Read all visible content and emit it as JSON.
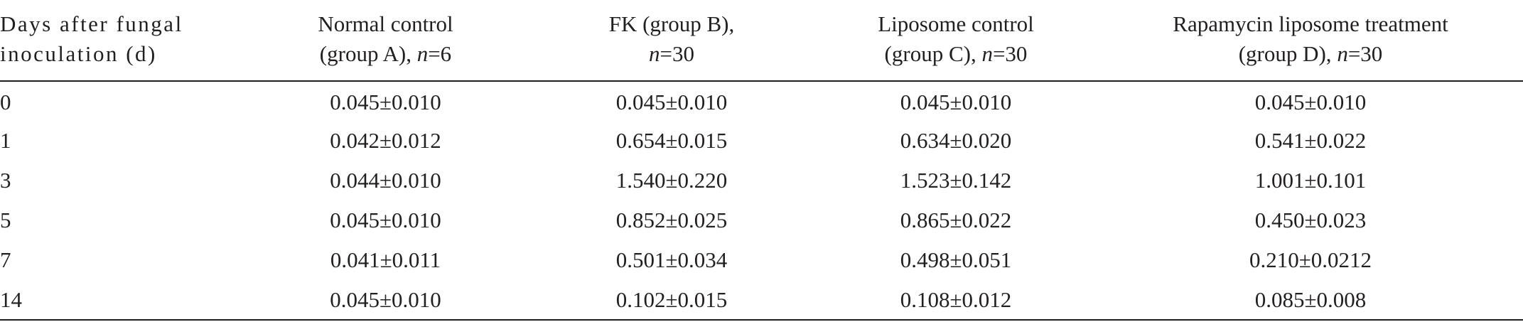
{
  "table": {
    "headers": [
      {
        "line1": "Days after fungal",
        "line2": "inoculation (d)"
      },
      {
        "line1": "Normal control",
        "line2_pre": "(group A), ",
        "n_label": "n",
        "line2_post": "=6"
      },
      {
        "line1": "FK (group B),",
        "line2_pre": "",
        "n_label": "n",
        "line2_post": "=30"
      },
      {
        "line1": "Liposome control",
        "line2_pre": "(group C), ",
        "n_label": "n",
        "line2_post": "=30"
      },
      {
        "line1": "Rapamycin liposome treatment",
        "line2_pre": "(group D), ",
        "n_label": "n",
        "line2_post": "=30"
      }
    ],
    "rows": [
      {
        "day": "0",
        "a": "0.045±0.010",
        "b": "0.045±0.010",
        "c": "0.045±0.010",
        "d": "0.045±0.010"
      },
      {
        "day": "1",
        "a": "0.042±0.012",
        "b": "0.654±0.015",
        "c": "0.634±0.020",
        "d": "0.541±0.022"
      },
      {
        "day": "3",
        "a": "0.044±0.010",
        "b": "1.540±0.220",
        "c": "1.523±0.142",
        "d": "1.001±0.101"
      },
      {
        "day": "5",
        "a": "0.045±0.010",
        "b": "0.852±0.025",
        "c": "0.865±0.022",
        "d": "0.450±0.023"
      },
      {
        "day": "7",
        "a": "0.041±0.011",
        "b": "0.501±0.034",
        "c": "0.498±0.051",
        "d": "0.210±0.0212"
      },
      {
        "day": "14",
        "a": "0.045±0.010",
        "b": "0.102±0.015",
        "c": "0.108±0.012",
        "d": "0.085±0.008"
      }
    ]
  }
}
